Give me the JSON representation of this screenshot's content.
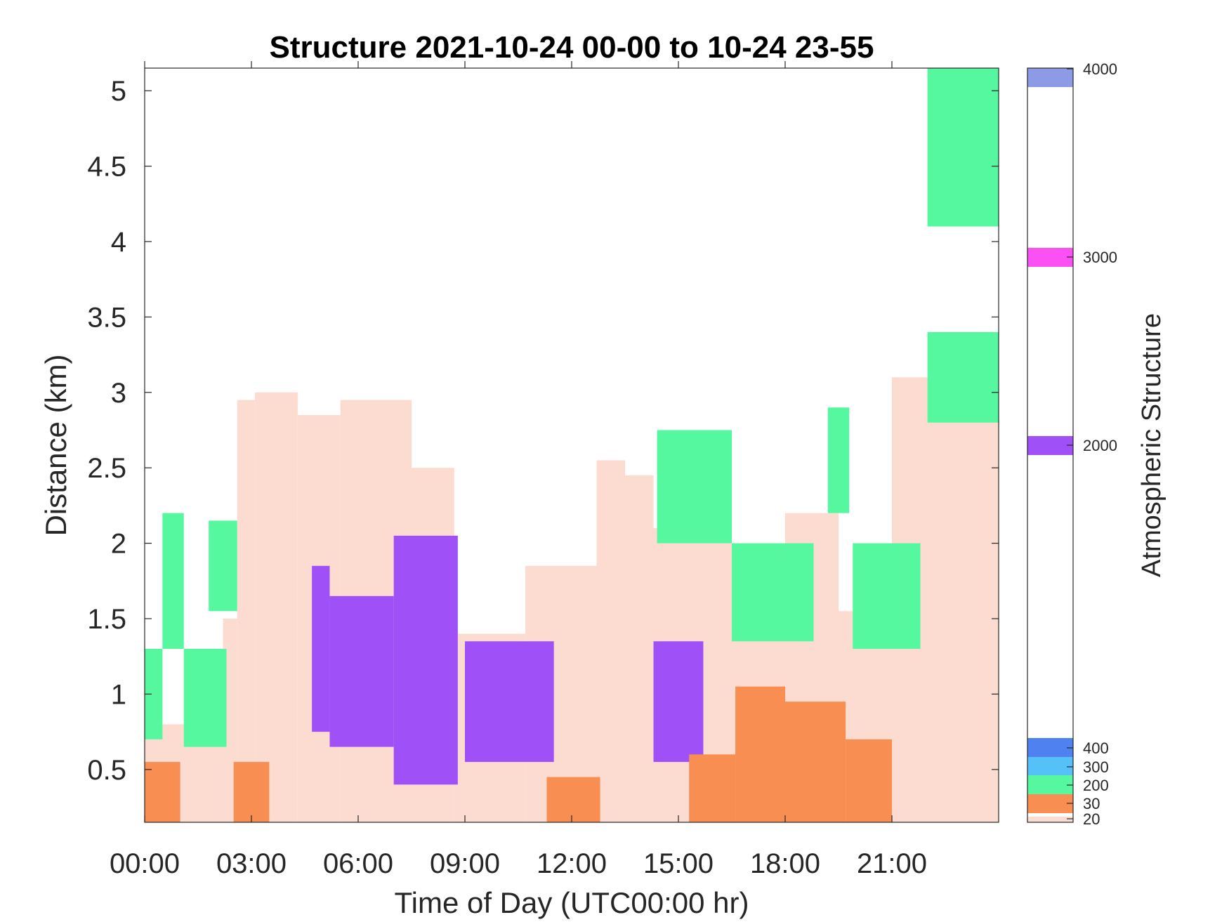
{
  "chart_data": {
    "type": "heatmap",
    "title": "Structure 2021-10-24 00-00 to 10-24 23-55",
    "xlabel": "Time of Day (UTC00:00 hr)",
    "ylabel": "Distance (km)",
    "xlim_hours": [
      0,
      24
    ],
    "ylim": [
      0.15,
      5.15
    ],
    "x_ticks": [
      "00:00",
      "03:00",
      "06:00",
      "09:00",
      "12:00",
      "15:00",
      "18:00",
      "21:00"
    ],
    "x_tick_hours": [
      0,
      3,
      6,
      9,
      12,
      15,
      18,
      21
    ],
    "y_ticks": [
      "0.5",
      "1",
      "1.5",
      "2",
      "2.5",
      "3",
      "3.5",
      "4",
      "4.5",
      "5"
    ],
    "y_tick_values": [
      0.5,
      1,
      1.5,
      2,
      2.5,
      3,
      3.5,
      4,
      4.5,
      5
    ],
    "colorbar": {
      "label": "Atmospheric Structure",
      "ticks": [
        "20",
        "30",
        "200",
        "300",
        "400",
        "2000",
        "3000",
        "4000"
      ],
      "classes": [
        {
          "value": "20",
          "color": "#fcdcd0"
        },
        {
          "value": "30",
          "color": "#f98e52"
        },
        {
          "value": "200",
          "color": "#55f89f"
        },
        {
          "value": "300",
          "color": "#56c1f8"
        },
        {
          "value": "400",
          "color": "#5081f1"
        },
        {
          "value": "2000",
          "color": "#9f51f7"
        },
        {
          "value": "3000",
          "color": "#fb50f3"
        },
        {
          "value": "4000",
          "color": "#8d9ae6"
        }
      ]
    },
    "series_layers": [
      {
        "name": "20",
        "segments": [
          {
            "t0": 0.0,
            "t1": 2.2,
            "top": 0.8
          },
          {
            "t0": 2.2,
            "t1": 2.6,
            "top": 1.5
          },
          {
            "t0": 2.6,
            "t1": 3.1,
            "top": 2.95
          },
          {
            "t0": 3.1,
            "t1": 4.3,
            "top": 3.0
          },
          {
            "t0": 4.3,
            "t1": 5.5,
            "top": 2.85
          },
          {
            "t0": 5.5,
            "t1": 7.5,
            "top": 2.95
          },
          {
            "t0": 7.5,
            "t1": 8.7,
            "top": 2.5
          },
          {
            "t0": 8.7,
            "t1": 10.7,
            "top": 1.4
          },
          {
            "t0": 10.7,
            "t1": 12.7,
            "top": 1.85
          },
          {
            "t0": 12.7,
            "t1": 13.5,
            "top": 2.55
          },
          {
            "t0": 13.5,
            "t1": 14.3,
            "top": 2.45
          },
          {
            "t0": 14.3,
            "t1": 16.5,
            "top": 2.1
          },
          {
            "t0": 16.5,
            "t1": 18.0,
            "top": 1.45
          },
          {
            "t0": 18.0,
            "t1": 19.5,
            "top": 2.2
          },
          {
            "t0": 19.5,
            "t1": 21.0,
            "top": 1.55
          },
          {
            "t0": 21.0,
            "t1": 22.5,
            "top": 3.1
          },
          {
            "t0": 22.5,
            "t1": 24.0,
            "top": 3.3
          }
        ]
      },
      {
        "name": "200",
        "segments": [
          {
            "t0": 0.0,
            "t1": 0.5,
            "bottom": 0.7,
            "top": 1.3
          },
          {
            "t0": 0.5,
            "t1": 1.1,
            "bottom": 1.3,
            "top": 2.2
          },
          {
            "t0": 1.1,
            "t1": 2.3,
            "bottom": 0.65,
            "top": 1.3
          },
          {
            "t0": 1.8,
            "t1": 2.6,
            "bottom": 1.55,
            "top": 2.15
          },
          {
            "t0": 14.4,
            "t1": 16.5,
            "bottom": 2.0,
            "top": 2.75
          },
          {
            "t0": 16.5,
            "t1": 18.8,
            "bottom": 1.35,
            "top": 2.0
          },
          {
            "t0": 19.2,
            "t1": 19.8,
            "bottom": 2.2,
            "top": 2.9
          },
          {
            "t0": 19.9,
            "t1": 21.8,
            "bottom": 1.3,
            "top": 2.0
          },
          {
            "t0": 22.0,
            "t1": 24.0,
            "bottom": 2.8,
            "top": 3.4
          },
          {
            "t0": 22.0,
            "t1": 24.0,
            "bottom": 4.1,
            "top": 5.15
          }
        ]
      },
      {
        "name": "2000",
        "segments": [
          {
            "t0": 4.7,
            "t1": 5.2,
            "bottom": 0.75,
            "top": 1.85
          },
          {
            "t0": 5.2,
            "t1": 7.0,
            "bottom": 0.65,
            "top": 1.65
          },
          {
            "t0": 7.0,
            "t1": 8.8,
            "bottom": 0.4,
            "top": 2.05
          },
          {
            "t0": 9.0,
            "t1": 11.5,
            "bottom": 0.55,
            "top": 1.35
          },
          {
            "t0": 14.3,
            "t1": 15.7,
            "bottom": 0.55,
            "top": 1.35
          }
        ]
      },
      {
        "name": "30",
        "segments": [
          {
            "t0": 0.0,
            "t1": 1.0,
            "top": 0.55
          },
          {
            "t0": 2.5,
            "t1": 3.5,
            "top": 0.55
          },
          {
            "t0": 11.3,
            "t1": 12.8,
            "top": 0.45
          },
          {
            "t0": 15.3,
            "t1": 16.6,
            "top": 0.6
          },
          {
            "t0": 16.6,
            "t1": 18.0,
            "top": 1.05
          },
          {
            "t0": 18.0,
            "t1": 19.7,
            "top": 0.95
          },
          {
            "t0": 19.7,
            "t1": 21.0,
            "top": 0.7
          }
        ]
      }
    ]
  }
}
